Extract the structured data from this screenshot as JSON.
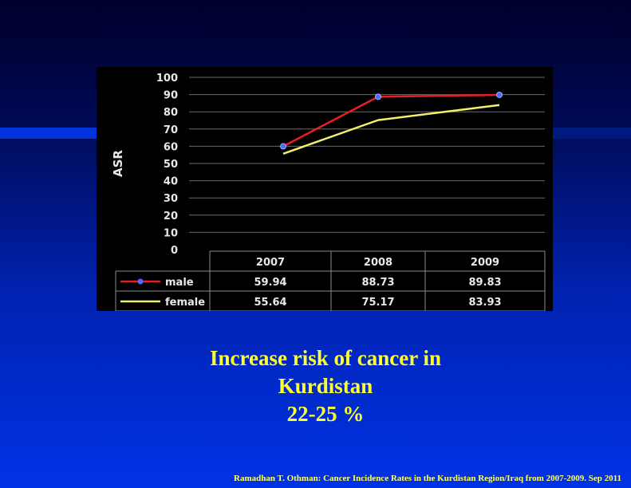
{
  "caption": {
    "line1": "Increase risk of cancer in",
    "line2": "Kurdistan",
    "line3": "22-25 %"
  },
  "footnote": "Ramadhan T. Othman: Cancer Incidence Rates in the Kurdistan Region/Iraq from 2007-2009. Sep 2011",
  "chart_data": {
    "type": "line",
    "ylabel": "ASR",
    "xlabel": "",
    "ylim": [
      0,
      100
    ],
    "yticks": [
      "0",
      "10",
      "20",
      "30",
      "40",
      "50",
      "60",
      "70",
      "80",
      "90",
      "100"
    ],
    "categories": [
      "2007",
      "2008",
      "2009"
    ],
    "grid": true,
    "data_table": true,
    "series": [
      {
        "name": "male",
        "values": [
          59.94,
          88.73,
          89.83
        ],
        "display": [
          "59.94",
          "88.73",
          "89.83"
        ],
        "color": "#e62020",
        "markers": true
      },
      {
        "name": "female",
        "values": [
          55.64,
          75.17,
          83.93
        ],
        "display": [
          "55.64",
          "75.17",
          "83.93"
        ],
        "color": "#f2ef6a",
        "markers": false
      }
    ]
  },
  "colors": {
    "chart_background": "#000000",
    "caption_text": "#ffff33",
    "footnote_text": "#ffff66"
  }
}
